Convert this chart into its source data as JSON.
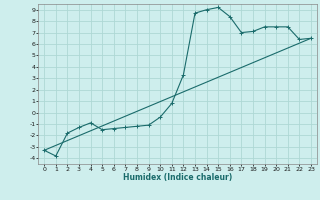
{
  "xlabel": "Humidex (Indice chaleur)",
  "background_color": "#ceeeed",
  "grid_color": "#aed8d5",
  "line_color": "#1a6b6b",
  "xlim": [
    -0.5,
    23.5
  ],
  "ylim": [
    -4.5,
    9.5
  ],
  "xticks": [
    0,
    1,
    2,
    3,
    4,
    5,
    6,
    7,
    8,
    9,
    10,
    11,
    12,
    13,
    14,
    15,
    16,
    17,
    18,
    19,
    20,
    21,
    22,
    23
  ],
  "yticks": [
    -4,
    -3,
    -2,
    -1,
    0,
    1,
    2,
    3,
    4,
    5,
    6,
    7,
    8,
    9
  ],
  "line1_x": [
    0,
    1,
    2,
    3,
    4,
    5,
    6,
    7,
    8,
    9,
    10,
    11,
    12,
    13,
    14,
    15,
    16,
    17,
    18,
    19,
    20,
    21,
    22,
    23
  ],
  "line1_y": [
    -3.3,
    -3.8,
    -1.8,
    -1.3,
    -0.9,
    -1.5,
    -1.4,
    -1.3,
    -1.2,
    -1.1,
    -0.4,
    0.8,
    3.3,
    8.7,
    9.0,
    9.2,
    8.4,
    7.0,
    7.1,
    7.5,
    7.5,
    7.5,
    6.4,
    6.5
  ],
  "line2_x": [
    0,
    23
  ],
  "line2_y": [
    -3.3,
    6.5
  ]
}
